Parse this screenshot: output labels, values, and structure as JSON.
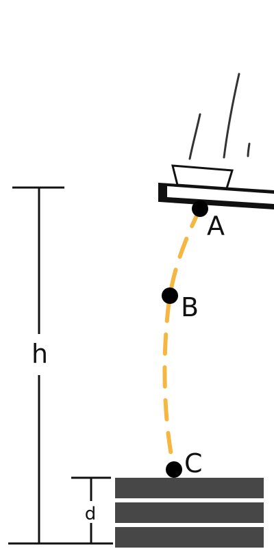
{
  "diagram": {
    "points": [
      {
        "id": "A",
        "label": "A"
      },
      {
        "id": "B",
        "label": "B"
      },
      {
        "id": "C",
        "label": "C"
      }
    ],
    "dimensions": {
      "height_label": "h",
      "depth_label": "d"
    },
    "colors": {
      "trajectory": "#f5b642",
      "stack_block": "#474747",
      "line": "#111111",
      "point": "#000000"
    }
  }
}
